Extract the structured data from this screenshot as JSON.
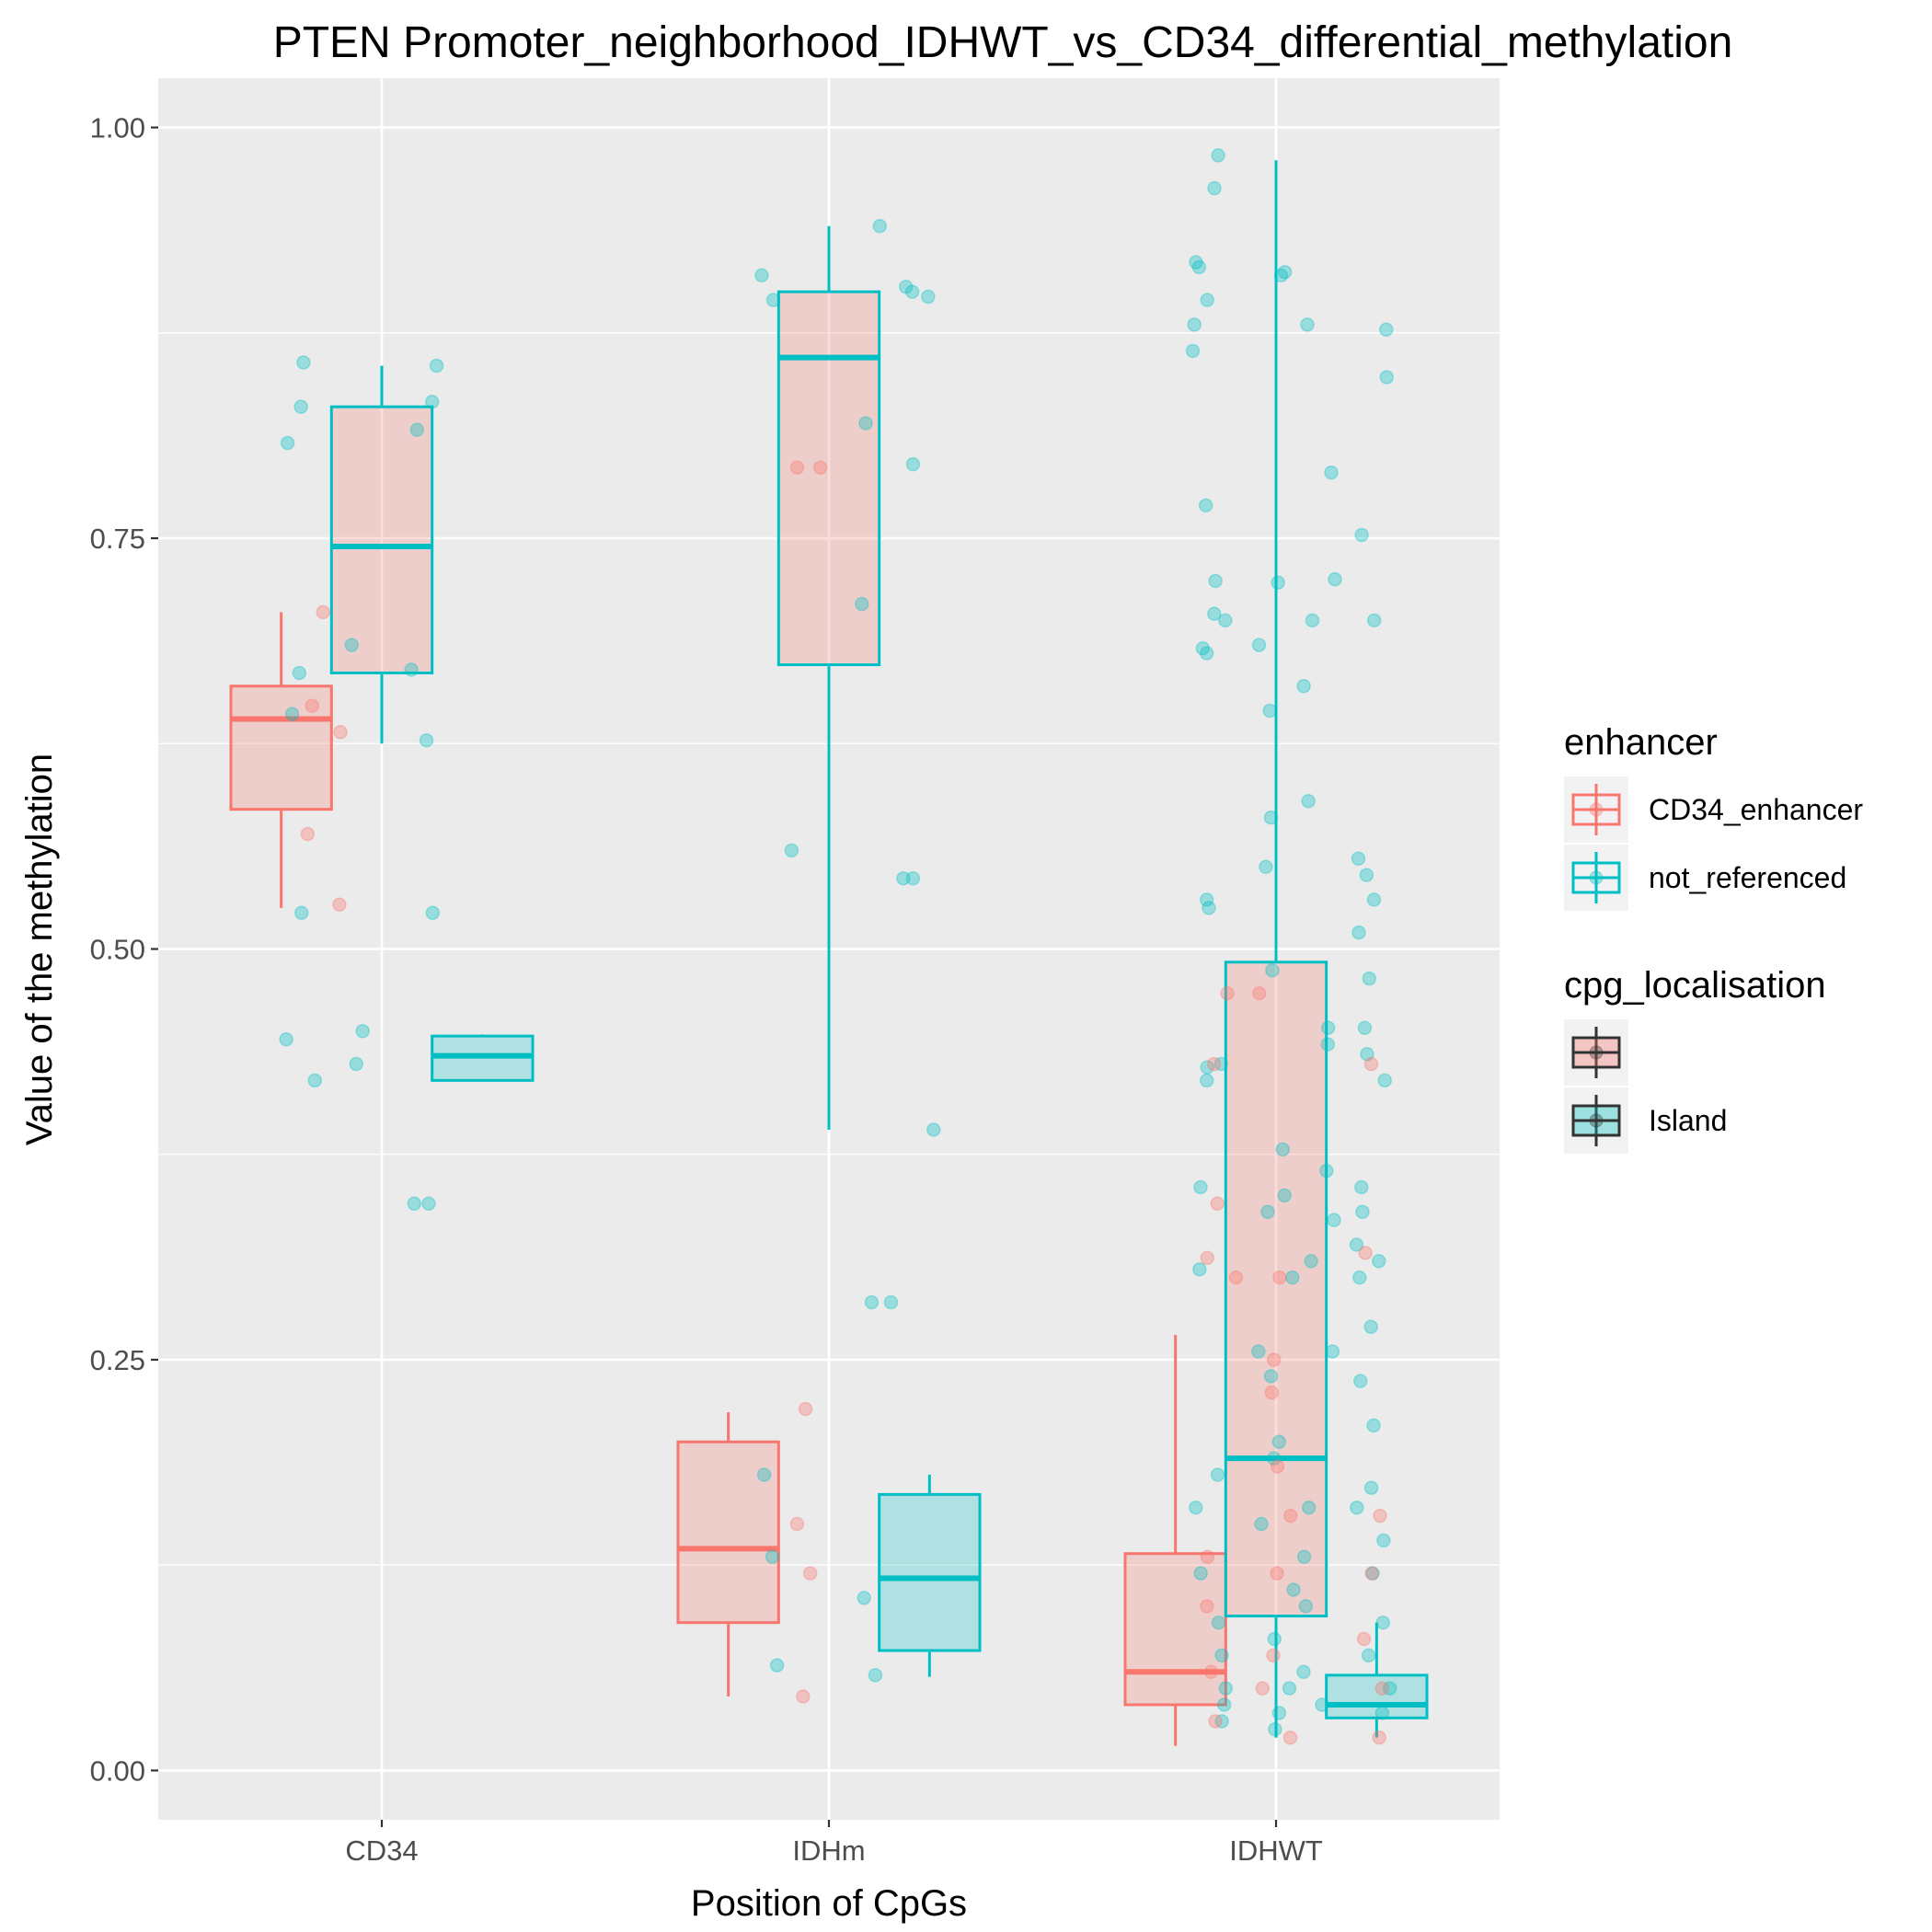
{
  "chart_data": {
    "type": "box",
    "title": "PTEN Promoter_neighborhood_IDHWT_vs_CD34_differential_methylation",
    "xlabel": "Position of CpGs",
    "ylabel": "Value of the methylation",
    "categories": [
      "CD34",
      "IDHm",
      "IDHWT"
    ],
    "ylim": [
      -0.03,
      1.03
    ],
    "yticks": [
      0.0,
      0.25,
      0.5,
      0.75,
      1.0
    ],
    "ytick_labels": [
      "0.00",
      "0.25",
      "0.50",
      "0.75",
      "1.00"
    ],
    "grid": true,
    "legend_position": "right",
    "legends": [
      {
        "title": "enhancer",
        "entries": [
          {
            "label": "CD34_enhancer",
            "color": "#F8766D"
          },
          {
            "label": "not_referenced",
            "color": "#00BFC4"
          }
        ]
      },
      {
        "title": "cpg_localisation",
        "entries": [
          {
            "label": "",
            "fill": "#F8766D"
          },
          {
            "label": "Island",
            "fill": "#00BFC4"
          }
        ]
      }
    ],
    "boxes": [
      {
        "category": "CD34",
        "enhancer": "CD34_enhancer",
        "cpg_localisation": "",
        "color": "#F8766D",
        "fill": "#F8766D",
        "whisker_low": 0.525,
        "q1": 0.585,
        "median": 0.64,
        "q3": 0.66,
        "whisker_high": 0.705
      },
      {
        "category": "CD34",
        "enhancer": "not_referenced",
        "cpg_localisation": "",
        "color": "#00BFC4",
        "fill": "#F8766D",
        "whisker_low": 0.625,
        "q1": 0.668,
        "median": 0.745,
        "q3": 0.83,
        "whisker_high": 0.855
      },
      {
        "category": "CD34",
        "enhancer": "not_referenced",
        "cpg_localisation": "Island",
        "color": "#00BFC4",
        "fill": "#00BFC4",
        "whisker_low": 0.42,
        "q1": 0.42,
        "median": 0.435,
        "q3": 0.447,
        "whisker_high": 0.448
      },
      {
        "category": "IDHm",
        "enhancer": "CD34_enhancer",
        "cpg_localisation": "Island",
        "color": "#F8766D",
        "fill": "#F8766D",
        "whisker_low": 0.045,
        "q1": 0.09,
        "median": 0.135,
        "q3": 0.2,
        "whisker_high": 0.218
      },
      {
        "category": "IDHm",
        "enhancer": "not_referenced",
        "cpg_localisation": "",
        "color": "#00BFC4",
        "fill": "#F8766D",
        "whisker_low": 0.39,
        "q1": 0.673,
        "median": 0.86,
        "q3": 0.9,
        "whisker_high": 0.94
      },
      {
        "category": "IDHm",
        "enhancer": "not_referenced",
        "cpg_localisation": "Island",
        "color": "#00BFC4",
        "fill": "#00BFC4",
        "whisker_low": 0.057,
        "q1": 0.073,
        "median": 0.117,
        "q3": 0.168,
        "whisker_high": 0.18
      },
      {
        "category": "IDHWT",
        "enhancer": "CD34_enhancer",
        "cpg_localisation": "Island",
        "color": "#F8766D",
        "fill": "#F8766D",
        "whisker_low": 0.015,
        "q1": 0.04,
        "median": 0.06,
        "q3": 0.132,
        "whisker_high": 0.265
      },
      {
        "category": "IDHWT",
        "enhancer": "not_referenced",
        "cpg_localisation": "",
        "color": "#00BFC4",
        "fill": "#F8766D",
        "whisker_low": 0.02,
        "q1": 0.094,
        "median": 0.19,
        "q3": 0.492,
        "whisker_high": 0.98
      },
      {
        "category": "IDHWT",
        "enhancer": "not_referenced",
        "cpg_localisation": "Island",
        "color": "#00BFC4",
        "fill": "#00BFC4",
        "whisker_low": 0.02,
        "q1": 0.032,
        "median": 0.04,
        "q3": 0.058,
        "whisker_high": 0.09
      }
    ],
    "points": [
      {
        "category": "CD34",
        "enhancer": "not_referenced",
        "x_offset": -0.18,
        "values": [
          0.83,
          0.857,
          0.808,
          0.643,
          0.668,
          0.522,
          0.445,
          0.42
        ]
      },
      {
        "category": "CD34",
        "enhancer": "not_referenced",
        "x_offset": -0.05,
        "values": [
          0.45,
          0.43,
          0.685
        ]
      },
      {
        "category": "CD34",
        "enhancer": "not_referenced",
        "x_offset": 0.1,
        "values": [
          0.855,
          0.833,
          0.67,
          0.627,
          0.816,
          0.522,
          0.345,
          0.345
        ]
      },
      {
        "category": "CD34",
        "enhancer": "CD34_enhancer",
        "x_offset": -0.13,
        "values": [
          0.705,
          0.648,
          0.57,
          0.527,
          0.632
        ]
      },
      {
        "category": "IDHm",
        "enhancer": "not_referenced",
        "x_offset": -0.12,
        "values": [
          0.91,
          0.895,
          0.56,
          0.18,
          0.13,
          0.064
        ]
      },
      {
        "category": "IDHm",
        "enhancer": "not_referenced",
        "x_offset": 0.1,
        "values": [
          0.94,
          0.82,
          0.71,
          0.285,
          0.285,
          0.105,
          0.058
        ]
      },
      {
        "category": "IDHm",
        "enhancer": "not_referenced",
        "x_offset": 0.2,
        "values": [
          0.9,
          0.903,
          0.897,
          0.795,
          0.543,
          0.543,
          0.39
        ]
      },
      {
        "category": "IDHm",
        "enhancer": "CD34_enhancer",
        "x_offset": -0.05,
        "values": [
          0.793,
          0.793,
          0.22,
          0.15,
          0.12,
          0.045
        ]
      },
      {
        "category": "IDHWT",
        "enhancer": "not_referenced",
        "x_offset": -0.15,
        "values": [
          0.983,
          0.963,
          0.918,
          0.915,
          0.895,
          0.88,
          0.864,
          0.77,
          0.724,
          0.704,
          0.7,
          0.683,
          0.68,
          0.525,
          0.53,
          0.43,
          0.428,
          0.42,
          0.355,
          0.305,
          0.18,
          0.16,
          0.12,
          0.09,
          0.07,
          0.05,
          0.04,
          0.03
        ]
      },
      {
        "category": "IDHWT",
        "enhancer": "not_referenced",
        "x_offset": 0.0,
        "values": [
          0.912,
          0.91,
          0.723,
          0.685,
          0.645,
          0.58,
          0.55,
          0.487,
          0.378,
          0.35,
          0.34,
          0.3,
          0.255,
          0.24,
          0.2,
          0.19,
          0.15,
          0.11,
          0.08,
          0.05,
          0.035,
          0.025
        ]
      },
      {
        "category": "IDHWT",
        "enhancer": "not_referenced",
        "x_offset": 0.1,
        "values": [
          0.88,
          0.79,
          0.725,
          0.7,
          0.66,
          0.59,
          0.452,
          0.442,
          0.365,
          0.335,
          0.31,
          0.255,
          0.16,
          0.13,
          0.1,
          0.06,
          0.04
        ]
      },
      {
        "category": "IDHWT",
        "enhancer": "not_referenced",
        "x_offset": 0.22,
        "values": [
          0.877,
          0.848,
          0.752,
          0.7,
          0.555,
          0.545,
          0.53,
          0.51,
          0.482,
          0.452,
          0.436,
          0.42,
          0.355,
          0.34,
          0.32,
          0.31,
          0.3,
          0.27,
          0.237,
          0.21,
          0.172,
          0.16,
          0.14,
          0.12,
          0.09,
          0.07,
          0.05,
          0.035
        ]
      },
      {
        "category": "IDHWT",
        "enhancer": "CD34_enhancer",
        "x_offset": -0.12,
        "values": [
          0.473,
          0.43,
          0.345,
          0.312,
          0.3,
          0.13,
          0.1,
          0.06,
          0.03
        ]
      },
      {
        "category": "IDHWT",
        "enhancer": "CD34_enhancer",
        "x_offset": 0.0,
        "values": [
          0.473,
          0.3,
          0.25,
          0.23,
          0.185,
          0.155,
          0.12,
          0.07,
          0.05,
          0.02
        ]
      },
      {
        "category": "IDHWT",
        "enhancer": "CD34_enhancer",
        "x_offset": 0.2,
        "values": [
          0.43,
          0.315,
          0.155,
          0.12,
          0.08,
          0.05,
          0.02
        ]
      }
    ]
  }
}
